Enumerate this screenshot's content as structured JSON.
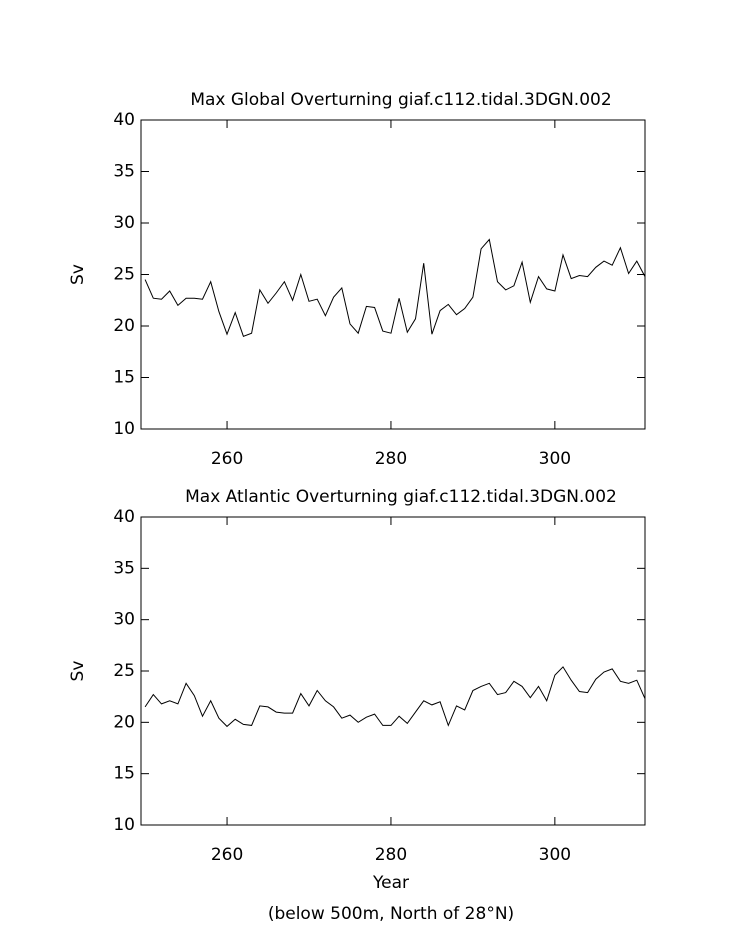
{
  "chart_data": [
    {
      "type": "line",
      "title": "Max Global Overturning giaf.c112.tidal.3DGN.002",
      "y_label": "Sv",
      "x": [
        250,
        251,
        252,
        253,
        254,
        255,
        256,
        257,
        258,
        259,
        260,
        261,
        262,
        263,
        264,
        265,
        266,
        267,
        268,
        269,
        270,
        271,
        272,
        273,
        274,
        275,
        276,
        277,
        278,
        279,
        280,
        281,
        282,
        283,
        284,
        285,
        286,
        287,
        288,
        289,
        290,
        291,
        292,
        293,
        294,
        295,
        296,
        297,
        298,
        299,
        300,
        301,
        302,
        303,
        304,
        305,
        306,
        307,
        308,
        309,
        310,
        311
      ],
      "values": [
        24.5,
        22.7,
        22.6,
        23.4,
        22.0,
        22.7,
        22.7,
        22.6,
        24.3,
        21.4,
        19.2,
        21.3,
        19.0,
        19.3,
        23.5,
        22.2,
        23.2,
        24.3,
        22.5,
        25.0,
        22.4,
        22.6,
        21.0,
        22.8,
        23.7,
        20.2,
        19.3,
        21.9,
        21.8,
        19.5,
        19.3,
        22.7,
        19.4,
        20.7,
        26.1,
        19.2,
        21.5,
        22.1,
        21.1,
        21.7,
        22.8,
        27.5,
        28.4,
        24.3,
        23.5,
        23.9,
        26.2,
        22.3,
        24.8,
        23.6,
        23.4,
        26.9,
        24.6,
        24.9,
        24.8,
        25.7,
        26.3,
        25.9,
        27.6,
        25.1,
        26.3,
        24.8
      ],
      "color": "#000000",
      "xlim": [
        249.5,
        311
      ],
      "ylim": [
        10,
        40
      ],
      "xticks": [
        260,
        280,
        300
      ],
      "yticks": [
        10,
        15,
        20,
        25,
        30,
        35,
        40
      ]
    },
    {
      "type": "line",
      "title": "Max Atlantic Overturning giaf.c112.tidal.3DGN.002",
      "y_label": "Sv",
      "x_label": "Year",
      "caption": "(below 500m, North of 28°N)",
      "x": [
        250,
        251,
        252,
        253,
        254,
        255,
        256,
        257,
        258,
        259,
        260,
        261,
        262,
        263,
        264,
        265,
        266,
        267,
        268,
        269,
        270,
        271,
        272,
        273,
        274,
        275,
        276,
        277,
        278,
        279,
        280,
        281,
        282,
        283,
        284,
        285,
        286,
        287,
        288,
        289,
        290,
        291,
        292,
        293,
        294,
        295,
        296,
        297,
        298,
        299,
        300,
        301,
        302,
        303,
        304,
        305,
        306,
        307,
        308,
        309,
        310,
        311
      ],
      "values": [
        21.5,
        22.7,
        21.8,
        22.1,
        21.8,
        23.8,
        22.6,
        20.6,
        22.1,
        20.4,
        19.6,
        20.3,
        19.8,
        19.7,
        21.6,
        21.5,
        21.0,
        20.9,
        20.9,
        22.8,
        21.6,
        23.1,
        22.1,
        21.5,
        20.4,
        20.7,
        20.0,
        20.5,
        20.8,
        19.7,
        19.7,
        20.6,
        19.9,
        21.0,
        22.1,
        21.7,
        22.0,
        19.7,
        21.6,
        21.2,
        23.1,
        23.5,
        23.8,
        22.7,
        22.9,
        24.0,
        23.5,
        22.4,
        23.5,
        22.1,
        24.6,
        25.4,
        24.1,
        23.0,
        22.9,
        24.2,
        24.9,
        25.2,
        24.0,
        23.8,
        24.1,
        22.3
      ],
      "color": "#000000",
      "xlim": [
        249.5,
        311
      ],
      "ylim": [
        10,
        40
      ],
      "xticks": [
        260,
        280,
        300
      ],
      "yticks": [
        10,
        15,
        20,
        25,
        30,
        35,
        40
      ]
    }
  ]
}
